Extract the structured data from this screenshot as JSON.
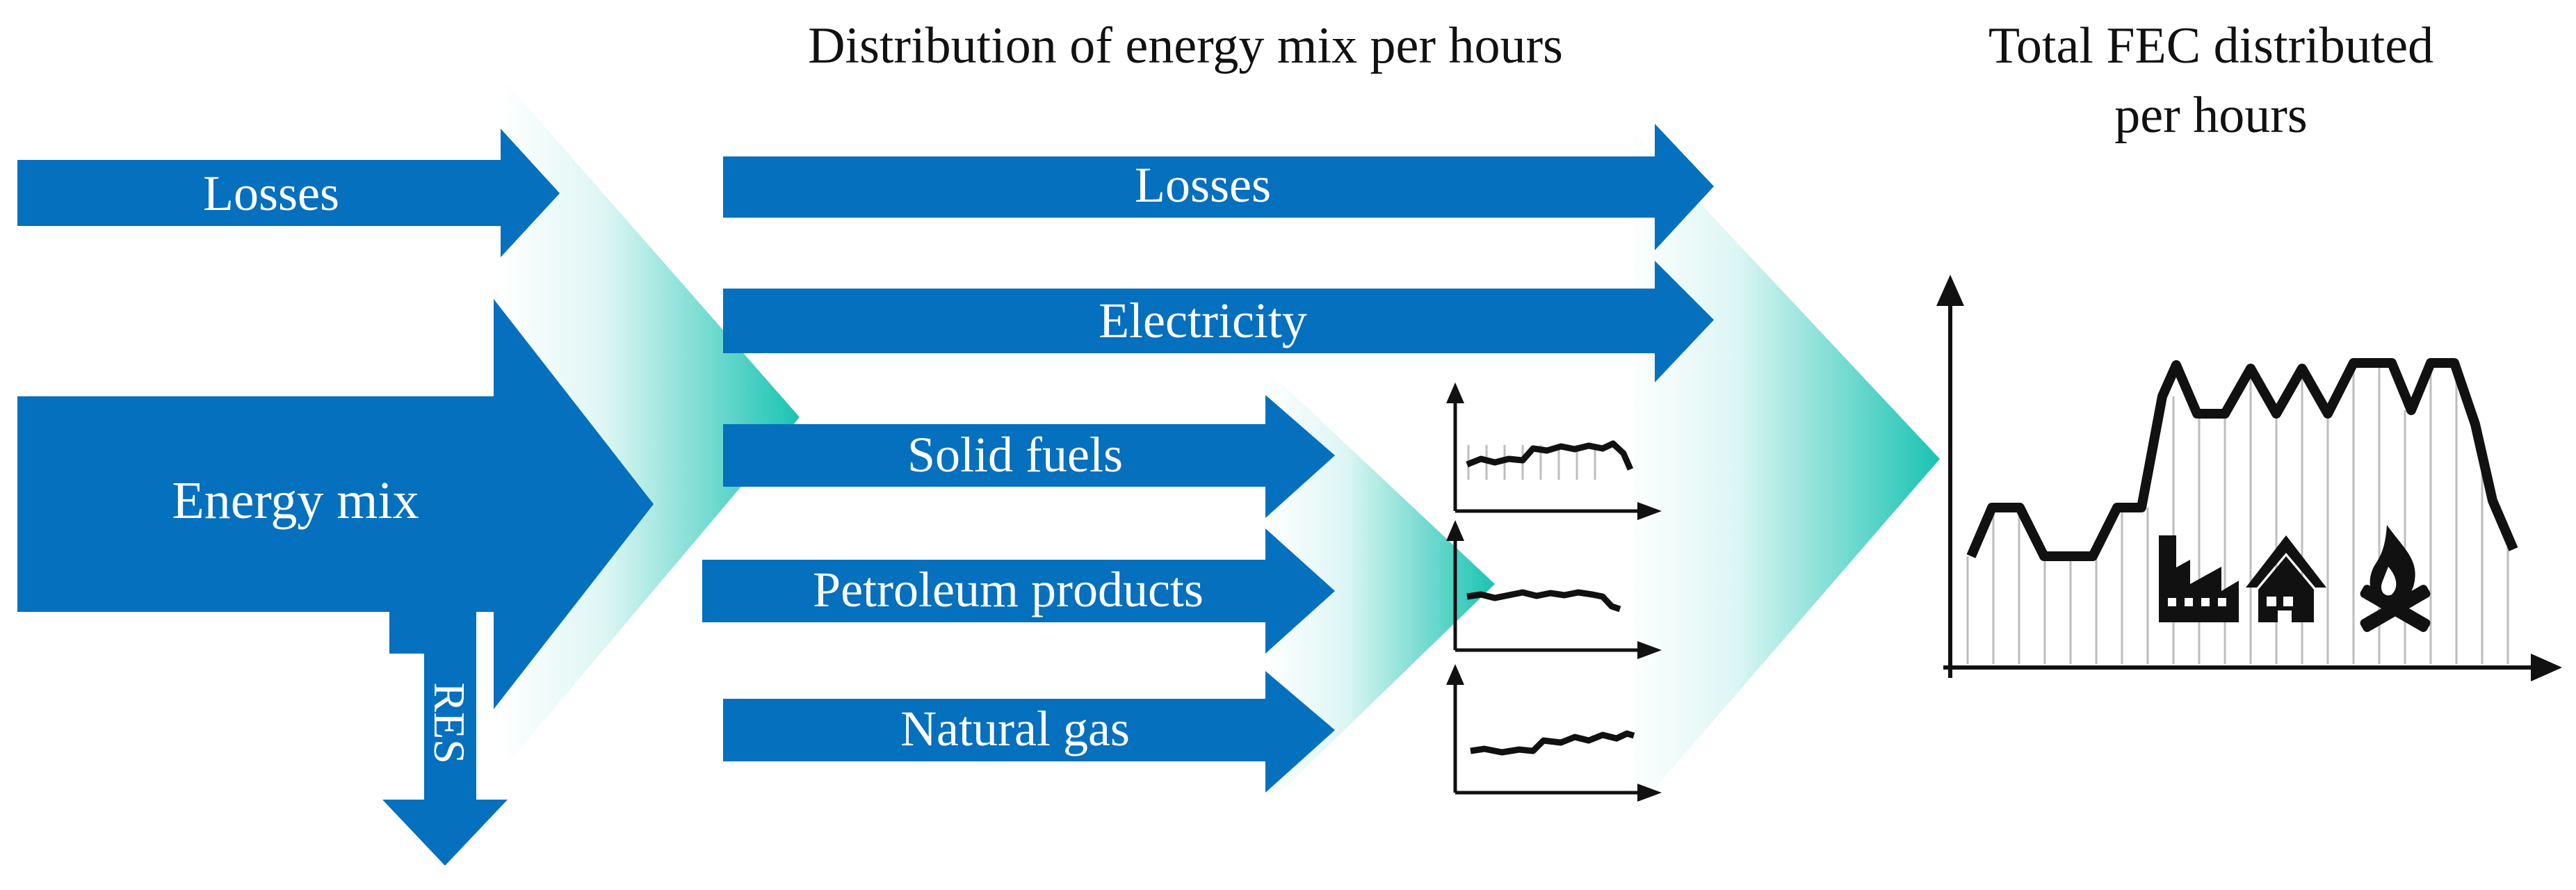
{
  "headings": {
    "distribution": "Distribution of energy mix per hours",
    "total_fec_line1": "Total FEC distributed",
    "total_fec_line2": "per hours"
  },
  "input_flows": {
    "losses": "Losses",
    "energy_mix": "Energy mix",
    "res": "RES"
  },
  "mix_flows": {
    "losses": "Losses",
    "electricity": "Electricity",
    "solid_fuels": "Solid fuels",
    "petroleum_products": "Petroleum products",
    "natural_gas": "Natural gas"
  },
  "colors": {
    "arrow_blue": "#0570BD",
    "teal_accent": "#19C3B2",
    "line": "#111111",
    "hour_grid": "#BDBDBD"
  },
  "icons": [
    "factory-icon",
    "house-icon",
    "campfire-icon"
  ]
}
